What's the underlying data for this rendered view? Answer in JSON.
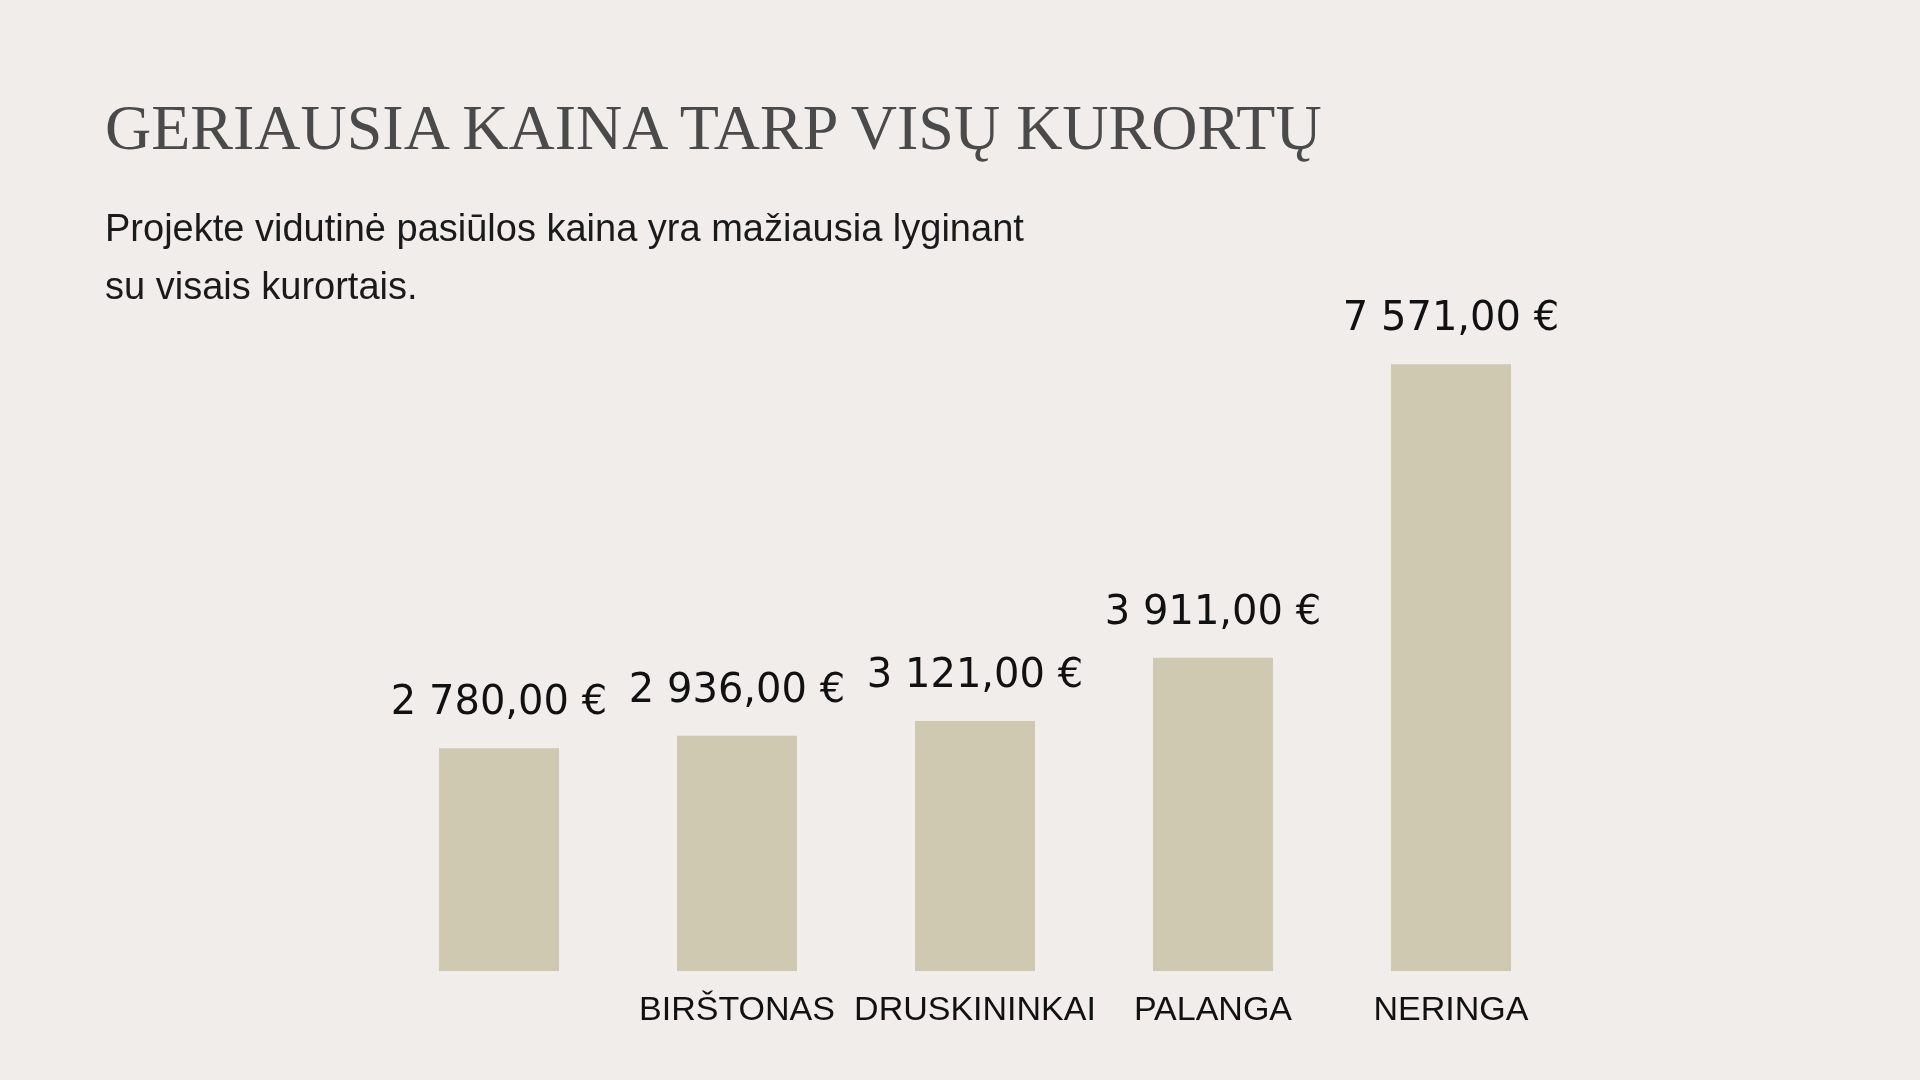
{
  "chart_data": {
    "type": "bar",
    "title": "GERIAUSIA KAINA TARP VISŲ KURORTŲ",
    "subtitle": "Projekte vidutinė pasiūlos kaina yra mažiausia lyginant su visais kurortais.",
    "categories": [
      null,
      "BIRŠTONAS",
      "DRUSKININKAI",
      "PALANGA",
      "NERINGA"
    ],
    "values": [
      2780,
      2936,
      3121,
      3911,
      7571
    ],
    "value_labels": [
      "2 780,00 €",
      "2 936,00 €",
      "3 121,00 €",
      "3 911,00 €",
      "7 571,00 €"
    ],
    "color": "#cfc9b1"
  }
}
